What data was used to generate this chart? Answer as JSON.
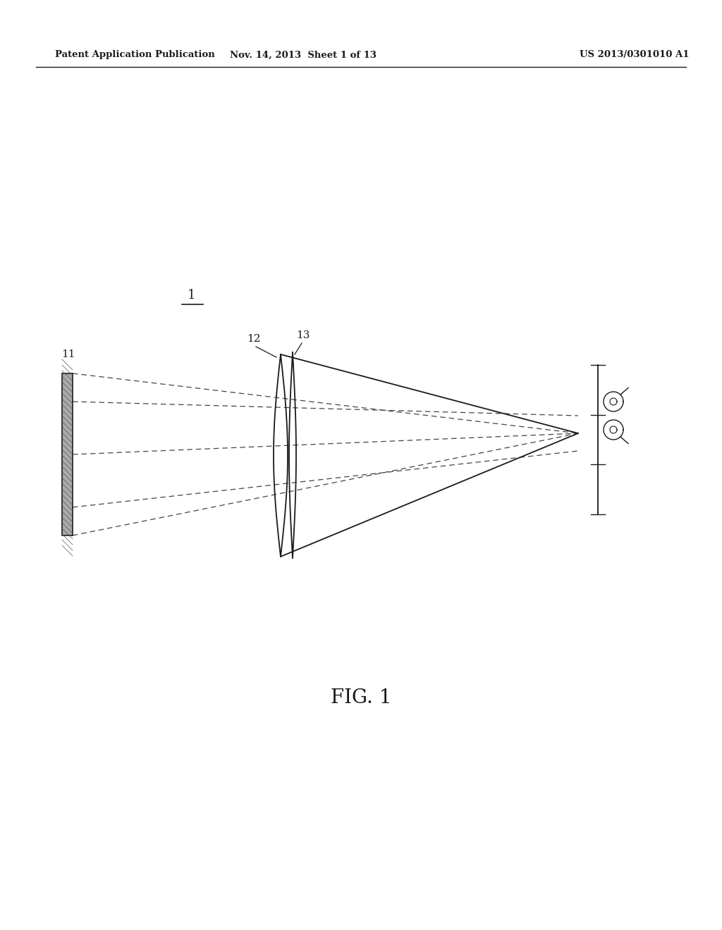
{
  "bg_color": "#ffffff",
  "line_color": "#1a1a1a",
  "dashed_color": "#444444",
  "header_left": "Patent Application Publication",
  "header_center": "Nov. 14, 2013  Sheet 1 of 13",
  "header_right": "US 2013/0301010 A1",
  "figure_label": "FIG. 1",
  "label_1": "1",
  "label_11": "11",
  "label_12": "12",
  "label_13": "13"
}
